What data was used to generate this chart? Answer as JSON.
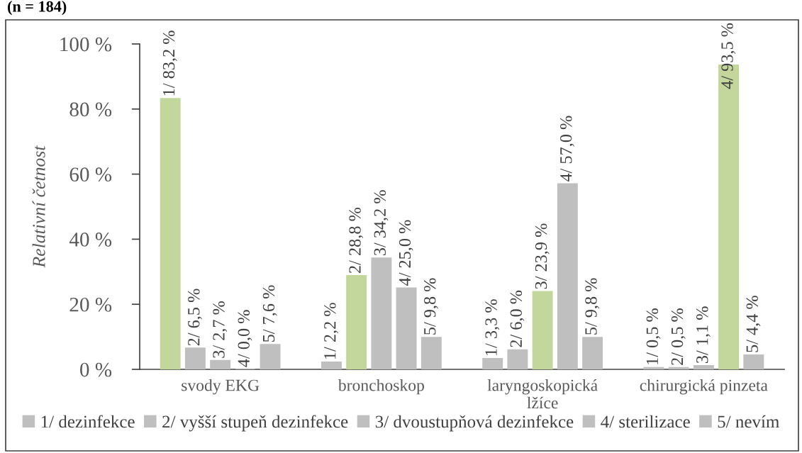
{
  "chart_data": {
    "type": "bar",
    "title": "(n = 184)",
    "ylabel": "Relativní četnost",
    "categories": [
      "svody EKG",
      "bronchoskop",
      "laryngoskopická\nlžíce",
      "chirurgická pinzeta"
    ],
    "series": [
      {
        "name": "1/ dezinfekce",
        "color": "#bfbfbf",
        "colors": [
          "#c3d69b",
          "#bfbfbf",
          "#bfbfbf",
          "#bfbfbf"
        ],
        "values": [
          83.2,
          2.2,
          3.3,
          0.5
        ],
        "value_labels": [
          "1/ 83,2 %",
          "1/ 2,2 %",
          "1/ 3,3 %",
          "1/ 0,5 %"
        ]
      },
      {
        "name": "2/ vyšší stupeň dezinfekce",
        "color": "#bfbfbf",
        "colors": [
          "#bfbfbf",
          "#c3d69b",
          "#bfbfbf",
          "#bfbfbf"
        ],
        "values": [
          6.5,
          28.8,
          6.0,
          0.5
        ],
        "value_labels": [
          "2/ 6,5 %",
          "2/ 28,8 %",
          "2/ 6,0 %",
          "2/ 0,5 %"
        ]
      },
      {
        "name": "3/ dvoustupňová dezinfekce",
        "color": "#bfbfbf",
        "colors": [
          "#bfbfbf",
          "#bfbfbf",
          "#c3d69b",
          "#bfbfbf"
        ],
        "values": [
          2.7,
          34.2,
          23.9,
          1.1
        ],
        "value_labels": [
          "3/ 2,7 %",
          "3/ 34,2 %",
          "3/ 23,9 %",
          "3/ 1,1 %"
        ]
      },
      {
        "name": "4/ sterilizace",
        "color": "#bfbfbf",
        "colors": [
          "#bfbfbf",
          "#bfbfbf",
          "#bfbfbf",
          "#c3d69b"
        ],
        "values": [
          0.0,
          25.0,
          57.0,
          93.5
        ],
        "value_labels": [
          "4/ 0,0 %",
          "4/ 25,0 %",
          "4/ 57,0 %",
          "4/ 93,5 %"
        ]
      },
      {
        "name": "5/ nevím",
        "color": "#bfbfbf",
        "colors": [
          "#bfbfbf",
          "#bfbfbf",
          "#bfbfbf",
          "#bfbfbf"
        ],
        "values": [
          7.6,
          9.8,
          9.8,
          4.4
        ],
        "value_labels": [
          "5/ 7,6 %",
          "5/ 9,8 %",
          "5/ 9,8 %",
          "5/ 4,4 %"
        ]
      }
    ],
    "ylim": [
      0,
      100
    ],
    "yticks": [
      {
        "value": 0,
        "label": "0 %"
      },
      {
        "value": 20,
        "label": "20 %"
      },
      {
        "value": 40,
        "label": "40 %"
      },
      {
        "value": 60,
        "label": "60 %"
      },
      {
        "value": 80,
        "label": "80 %"
      },
      {
        "value": 100,
        "label": "100 %"
      }
    ],
    "legend": "bottom"
  }
}
